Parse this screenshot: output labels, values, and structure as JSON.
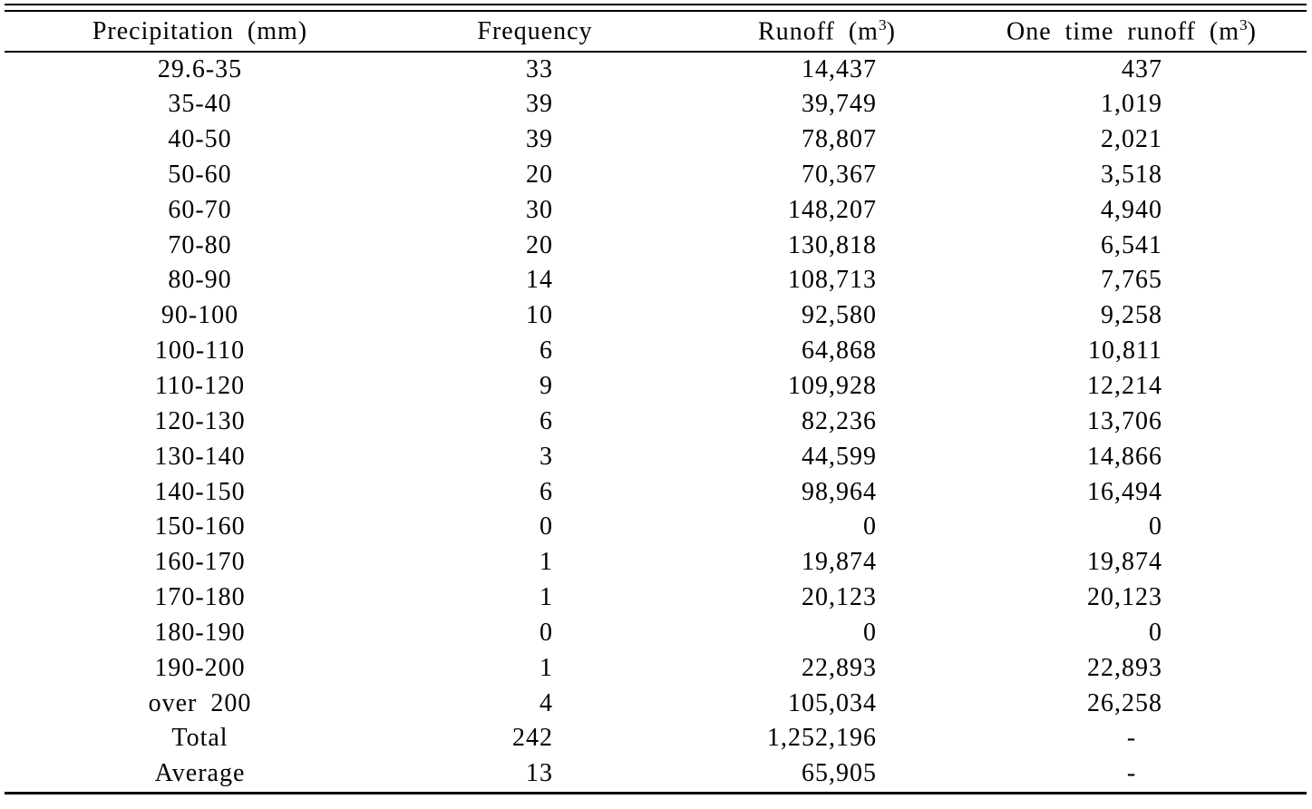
{
  "table": {
    "columns": [
      {
        "label": "Precipitation (mm)"
      },
      {
        "label": "Frequency"
      },
      {
        "label_pre": "Runoff (m",
        "sup": "3",
        "label_post": ")"
      },
      {
        "label_pre": "One time runoff (m",
        "sup": "3",
        "label_post": ")"
      }
    ],
    "rows": [
      [
        "29.6-35",
        "33",
        "14,437",
        "437"
      ],
      [
        "35-40",
        "39",
        "39,749",
        "1,019"
      ],
      [
        "40-50",
        "39",
        "78,807",
        "2,021"
      ],
      [
        "50-60",
        "20",
        "70,367",
        "3,518"
      ],
      [
        "60-70",
        "30",
        "148,207",
        "4,940"
      ],
      [
        "70-80",
        "20",
        "130,818",
        "6,541"
      ],
      [
        "80-90",
        "14",
        "108,713",
        "7,765"
      ],
      [
        "90-100",
        "10",
        "92,580",
        "9,258"
      ],
      [
        "100-110",
        "6",
        "64,868",
        "10,811"
      ],
      [
        "110-120",
        "9",
        "109,928",
        "12,214"
      ],
      [
        "120-130",
        "6",
        "82,236",
        "13,706"
      ],
      [
        "130-140",
        "3",
        "44,599",
        "14,866"
      ],
      [
        "140-150",
        "6",
        "98,964",
        "16,494"
      ],
      [
        "150-160",
        "0",
        "0",
        "0"
      ],
      [
        "160-170",
        "1",
        "19,874",
        "19,874"
      ],
      [
        "170-180",
        "1",
        "20,123",
        "20,123"
      ],
      [
        "180-190",
        "0",
        "0",
        "0"
      ],
      [
        "190-200",
        "1",
        "22,893",
        "22,893"
      ],
      [
        "over 200",
        "4",
        "105,034",
        "26,258"
      ],
      [
        "Total",
        "242",
        "1,252,196",
        "-"
      ],
      [
        "Average",
        "13",
        "65,905",
        "-"
      ]
    ],
    "no_data_marker": "-",
    "line_color": "#000000",
    "background_color": "#ffffff"
  },
  "chart_data": {
    "type": "table",
    "title": "",
    "categories": [
      "29.6-35",
      "35-40",
      "40-50",
      "50-60",
      "60-70",
      "70-80",
      "80-90",
      "90-100",
      "100-110",
      "110-120",
      "120-130",
      "130-140",
      "140-150",
      "150-160",
      "160-170",
      "170-180",
      "180-190",
      "190-200",
      "over 200"
    ],
    "series": [
      {
        "name": "Frequency",
        "values": [
          33,
          39,
          39,
          20,
          30,
          20,
          14,
          10,
          6,
          9,
          6,
          3,
          6,
          0,
          1,
          1,
          0,
          1,
          4
        ]
      },
      {
        "name": "Runoff (m3)",
        "values": [
          14437,
          39749,
          78807,
          70367,
          148207,
          130818,
          108713,
          92580,
          64868,
          109928,
          82236,
          44599,
          98964,
          0,
          19874,
          20123,
          0,
          22893,
          105034
        ]
      },
      {
        "name": "One time runoff (m3)",
        "values": [
          437,
          1019,
          2021,
          3518,
          4940,
          6541,
          7765,
          9258,
          10811,
          12214,
          13706,
          14866,
          16494,
          0,
          19874,
          20123,
          0,
          22893,
          26258
        ]
      }
    ],
    "totals": {
      "frequency_total": 242,
      "runoff_total": 1252196,
      "frequency_average": 13,
      "runoff_average": 65905
    },
    "xlabel": "Precipitation (mm)",
    "ylabel": ""
  }
}
